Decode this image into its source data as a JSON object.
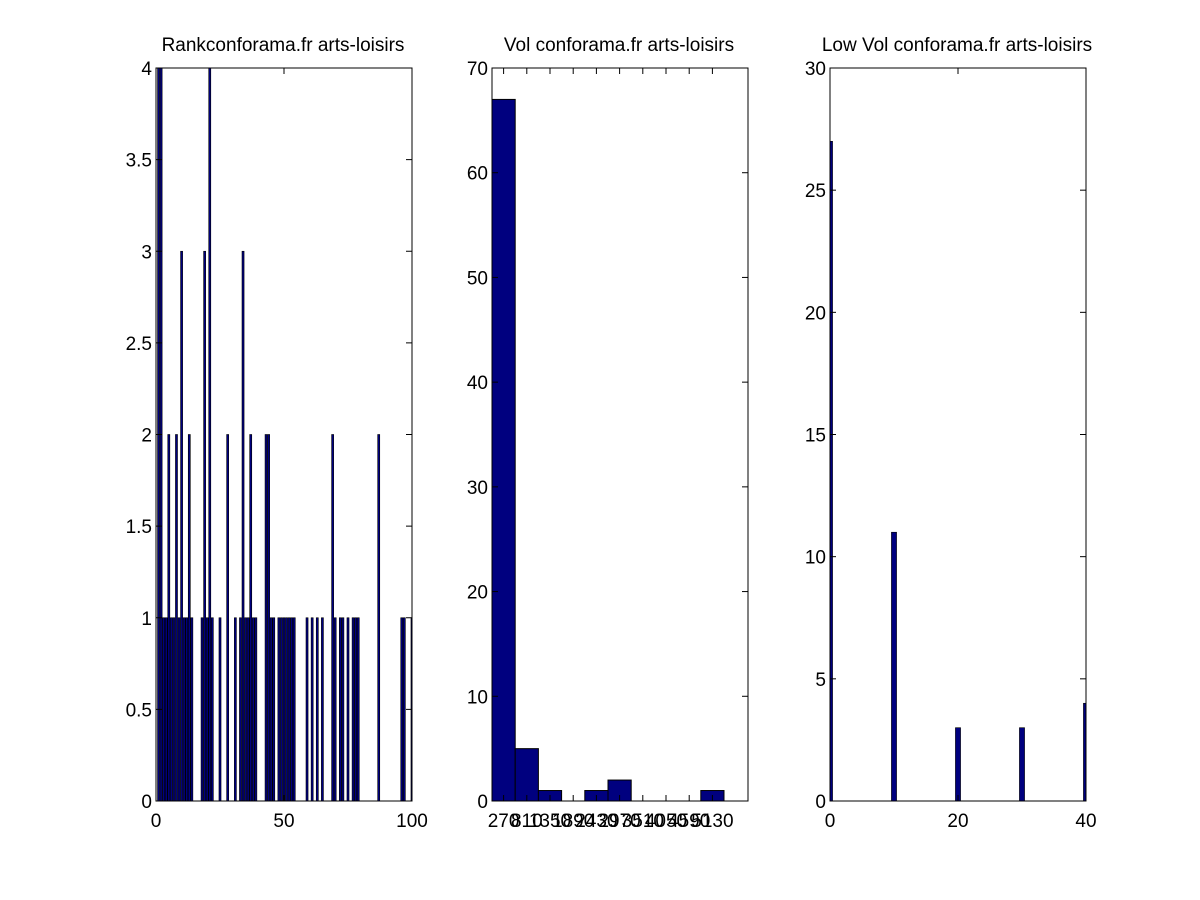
{
  "figure": {
    "background": "#ffffff",
    "bar_color": "#00007f",
    "bar_edge": "#000000"
  },
  "chart_data": [
    {
      "type": "bar",
      "title": "Rankconforama.fr arts-loisirs",
      "xlabel": "",
      "ylabel": "",
      "xlim": [
        0,
        100
      ],
      "ylim": [
        0,
        4
      ],
      "xticks": [
        0,
        50,
        100
      ],
      "xtick_labels": [
        "0",
        "50",
        "100"
      ],
      "yticks": [
        0,
        0.5,
        1,
        1.5,
        2,
        2.5,
        3,
        3.5,
        4
      ],
      "ytick_labels": [
        "0",
        "0.5",
        "1",
        "1.5",
        "2",
        "2.5",
        "3",
        "3.5",
        "4"
      ],
      "bar_width": 0.8,
      "x": [
        1,
        2,
        3,
        4,
        5,
        6,
        7,
        8,
        9,
        10,
        11,
        12,
        13,
        14,
        18,
        19,
        20,
        21,
        22,
        25,
        28,
        31,
        33,
        34,
        35,
        36,
        37,
        38,
        39,
        43,
        44,
        45,
        46,
        48,
        49,
        50,
        51,
        52,
        53,
        54,
        59,
        61,
        63,
        65,
        69,
        70,
        72,
        73,
        75,
        77,
        78,
        79,
        87,
        96,
        97,
        100
      ],
      "values": [
        4,
        4,
        1,
        1,
        2,
        1,
        1,
        2,
        1,
        3,
        1,
        1,
        2,
        1,
        1,
        3,
        1,
        4,
        1,
        1,
        2,
        1,
        1,
        3,
        1,
        1,
        2,
        1,
        1,
        2,
        2,
        1,
        1,
        1,
        1,
        1,
        1,
        1,
        1,
        1,
        1,
        1,
        1,
        1,
        2,
        1,
        1,
        1,
        1,
        1,
        1,
        1,
        2,
        1,
        1,
        1
      ]
    },
    {
      "type": "bar",
      "title": "Vol conforama.fr arts-loisirs",
      "xlabel": "",
      "ylabel": "",
      "ylim": [
        0,
        70
      ],
      "yticks": [
        0,
        10,
        20,
        30,
        40,
        50,
        60,
        70
      ],
      "ytick_labels": [
        "0",
        "10",
        "20",
        "30",
        "40",
        "50",
        "60",
        "70"
      ],
      "categories": [
        "270",
        "810",
        "1350",
        "1890",
        "2430",
        "2970",
        "3510",
        "4050",
        "4590",
        "5130"
      ],
      "values": [
        67,
        5,
        1,
        0,
        1,
        2,
        0,
        0,
        0,
        1
      ]
    },
    {
      "type": "bar",
      "title": "Low Vol conforama.fr arts-loisirs",
      "xlabel": "",
      "ylabel": "",
      "xlim": [
        0,
        40
      ],
      "ylim": [
        0,
        30
      ],
      "xticks": [
        0,
        20,
        40
      ],
      "xtick_labels": [
        "0",
        "20",
        "40"
      ],
      "yticks": [
        0,
        5,
        10,
        15,
        20,
        25,
        30
      ],
      "ytick_labels": [
        "0",
        "5",
        "10",
        "15",
        "20",
        "25",
        "30"
      ],
      "bar_width": 0.8,
      "x": [
        0,
        10,
        20,
        30,
        40
      ],
      "values": [
        27,
        11,
        3,
        3,
        4
      ]
    }
  ]
}
